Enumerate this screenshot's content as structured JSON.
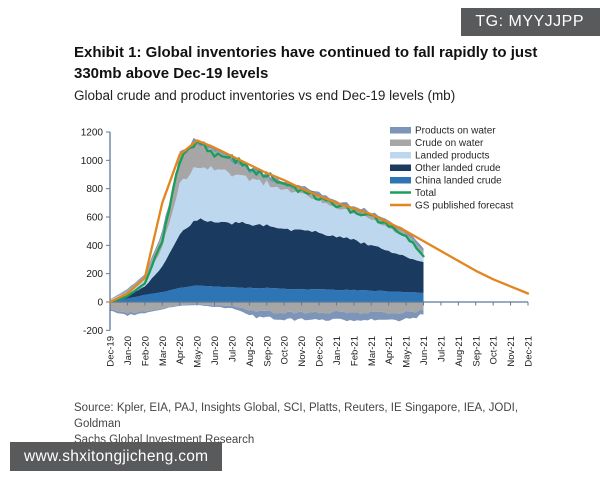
{
  "watermark_top": {
    "label": "TG: MYYJJPP"
  },
  "watermark_bottom": {
    "label": "www.shxitongjicheng.com"
  },
  "title": {
    "line1": "Exhibit 1: Global inventories have continued to fall rapidly to just",
    "line2": "330mb above Dec-19 levels"
  },
  "subtitle": "Global crude and product inventories vs end Dec-19 levels (mb)",
  "source": {
    "line1": "Source: Kpler, EIA, PAJ, Insights Global, SCI, Platts, Reuters, IE Singapore, IEA, JODI, Goldman",
    "line2": "Sachs Global Investment Research"
  },
  "chart_data": {
    "type": "area",
    "stacked": true,
    "grid": false,
    "legend_position": "top-right-inside",
    "x": [
      "Dec-19",
      "Jan-20",
      "Feb-20",
      "Mar-20",
      "Apr-20",
      "May-20",
      "Jun-20",
      "Jul-20",
      "Aug-20",
      "Sep-20",
      "Oct-20",
      "Nov-20",
      "Dec-20",
      "Jan-21",
      "Feb-21",
      "Mar-21",
      "Apr-21",
      "May-21",
      "Jun-21",
      "Jul-21",
      "Aug-21",
      "Sep-21",
      "Oct-21",
      "Nov-21",
      "Dec-21"
    ],
    "ylim": [
      -200,
      1200
    ],
    "yticks": [
      -200,
      0,
      200,
      400,
      600,
      800,
      1000,
      1200
    ],
    "axis_color": "#5b7b9c",
    "areas": [
      {
        "name": "China landed crude",
        "color": "#2e75b6",
        "values": [
          5,
          25,
          50,
          70,
          100,
          115,
          110,
          105,
          100,
          100,
          95,
          90,
          90,
          85,
          85,
          80,
          75,
          70,
          65
        ]
      },
      {
        "name": "Other landed crude",
        "color": "#1b3a60",
        "values": [
          5,
          20,
          60,
          180,
          380,
          465,
          450,
          450,
          450,
          440,
          425,
          415,
          400,
          375,
          350,
          320,
          285,
          250,
          220
        ]
      },
      {
        "name": "Landed products",
        "color": "#bdd7ee",
        "values": [
          5,
          25,
          50,
          130,
          350,
          370,
          370,
          350,
          320,
          295,
          280,
          255,
          225,
          205,
          190,
          180,
          165,
          145,
          45
        ]
      },
      {
        "name": "Crude on water",
        "color": "#a6a6a6",
        "values": [
          3,
          15,
          25,
          90,
          180,
          165,
          125,
          90,
          50,
          40,
          30,
          25,
          30,
          25,
          25,
          25,
          25,
          25,
          30
        ]
      },
      {
        "name": "Products on water",
        "color": "#7d95b9",
        "values": [
          2,
          7,
          10,
          25,
          30,
          30,
          25,
          30,
          30,
          30,
          25,
          25,
          25,
          25,
          25,
          25,
          25,
          25,
          25
        ]
      }
    ],
    "areas_below_zero": [
      {
        "name": "Crude on water",
        "color": "#a6a6a6",
        "values": [
          -50,
          -70,
          -60,
          -40,
          -20,
          -15,
          -20,
          -25,
          -50,
          -60,
          -70,
          -60,
          -70,
          -60,
          -70,
          -60,
          -70,
          -60,
          -50
        ]
      },
      {
        "name": "Products on water",
        "color": "#7d95b9",
        "values": [
          -10,
          -15,
          -10,
          -5,
          -5,
          -5,
          -10,
          -15,
          -30,
          -40,
          -40,
          -45,
          -40,
          -50,
          -45,
          -50,
          -40,
          -45,
          -30
        ]
      }
    ],
    "lines": [
      {
        "name": "Total",
        "color": "#1a9e5c",
        "values": [
          0,
          40,
          130,
          440,
          1000,
          1130,
          1050,
          1020,
          940,
          900,
          840,
          780,
          740,
          690,
          640,
          600,
          540,
          470,
          330
        ]
      },
      {
        "name": "GS published forecast",
        "color": "#e2861f",
        "values": [
          0,
          60,
          170,
          700,
          1040,
          1140,
          1090,
          1030,
          970,
          910,
          860,
          800,
          750,
          700,
          660,
          620,
          560,
          500,
          430,
          360,
          290,
          220,
          160,
          110,
          60
        ]
      }
    ],
    "legend": [
      {
        "label": "Products on water",
        "color": "#7d95b9",
        "swatch": "box"
      },
      {
        "label": "Crude on water",
        "color": "#a6a6a6",
        "swatch": "box"
      },
      {
        "label": "Landed products",
        "color": "#bdd7ee",
        "swatch": "box"
      },
      {
        "label": "Other landed crude",
        "color": "#1b3a60",
        "swatch": "box"
      },
      {
        "label": "China landed crude",
        "color": "#2e75b6",
        "swatch": "box"
      },
      {
        "label": "Total",
        "color": "#1a9e5c",
        "swatch": "line"
      },
      {
        "label": "GS published forecast",
        "color": "#e2861f",
        "swatch": "line"
      }
    ]
  }
}
